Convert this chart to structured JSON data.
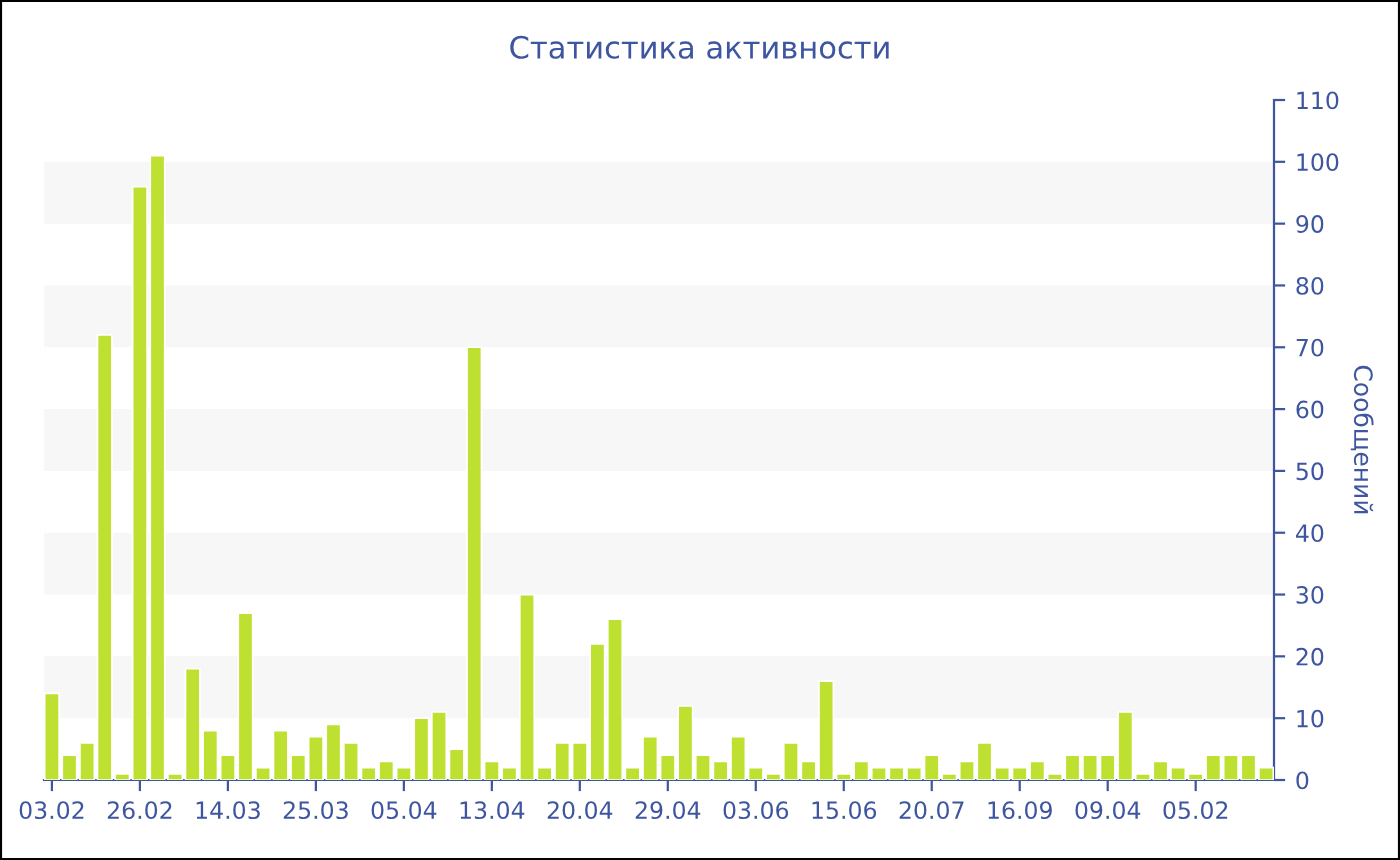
{
  "chart_data": {
    "type": "bar",
    "title": "Статистика активности",
    "ylabel": "Сообщений",
    "categories": [
      "03.02",
      null,
      null,
      null,
      null,
      "26.02",
      null,
      null,
      null,
      null,
      "14.03",
      null,
      null,
      null,
      null,
      "25.03",
      null,
      null,
      null,
      null,
      "05.04",
      null,
      null,
      null,
      null,
      "13.04",
      null,
      null,
      null,
      null,
      "20.04",
      null,
      null,
      null,
      null,
      "29.04",
      null,
      null,
      null,
      null,
      "03.06",
      null,
      null,
      null,
      null,
      "15.06",
      null,
      null,
      null,
      null,
      "20.07",
      null,
      null,
      null,
      null,
      "16.09",
      null,
      null,
      null,
      null,
      "09.04",
      null,
      null,
      null,
      null,
      "05.02",
      null,
      null,
      null,
      null
    ],
    "values": [
      14,
      4,
      6,
      72,
      1,
      96,
      101,
      1,
      18,
      8,
      4,
      27,
      2,
      8,
      4,
      7,
      9,
      6,
      2,
      3,
      2,
      10,
      11,
      5,
      70,
      3,
      2,
      30,
      2,
      6,
      6,
      22,
      26,
      2,
      7,
      4,
      12,
      4,
      3,
      7,
      2,
      1,
      6,
      3,
      16,
      1,
      3,
      2,
      2,
      2,
      4,
      1,
      3,
      6,
      2,
      2,
      3,
      1,
      4,
      4,
      4,
      11,
      1,
      3,
      2,
      1,
      4,
      4,
      4,
      2
    ],
    "color": "#bde031",
    "ylim": [
      0,
      110
    ],
    "yticks": [
      0,
      10,
      20,
      30,
      40,
      50,
      60,
      70,
      80,
      90,
      100,
      110
    ],
    "bands": [
      {
        "axis": "y",
        "from": 10,
        "to": 20,
        "color": "#f7f7f7"
      },
      {
        "axis": "y",
        "from": 30,
        "to": 40,
        "color": "#f7f7f7"
      },
      {
        "axis": "y",
        "from": 50,
        "to": 60,
        "color": "#f7f7f7"
      },
      {
        "axis": "y",
        "from": 70,
        "to": 80,
        "color": "#f7f7f7"
      },
      {
        "axis": "y",
        "from": 90,
        "to": 100,
        "color": "#f7f7f7"
      }
    ]
  }
}
